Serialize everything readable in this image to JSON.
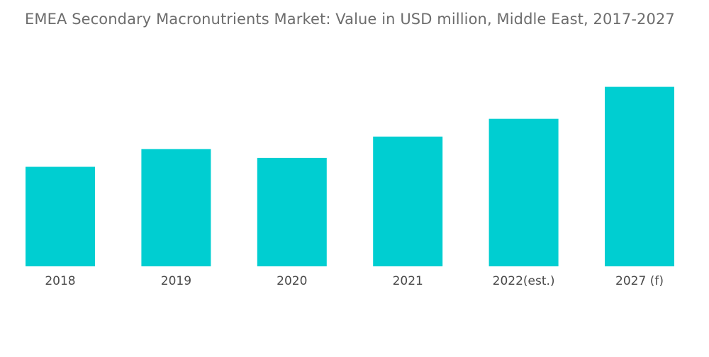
{
  "chart_data": {
    "type": "bar",
    "title": "EMEA Secondary Macronutrients Market: Value in USD million, Middle East, 2017-2027",
    "categories": [
      "2018",
      "2019",
      "2020",
      "2021",
      "2022(est.)",
      "2027 (f)"
    ],
    "values": [
      56,
      66,
      61,
      73,
      83,
      101
    ],
    "xlabel": "",
    "ylabel": "",
    "ylim": [
      0,
      110
    ],
    "grid": false,
    "legend": "none",
    "colors": {
      "bar": "#00CED1",
      "title": "#6d6d6d",
      "tick_label": "#4a4a4a"
    }
  }
}
